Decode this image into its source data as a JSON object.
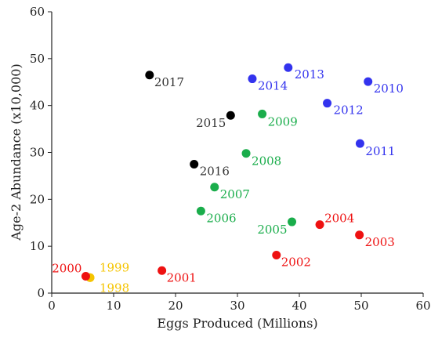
{
  "chart_data": {
    "type": "scatter",
    "xlabel": "Eggs Produced (Millions)",
    "ylabel": "Age-2 Abundance (x10,000)",
    "xlim": [
      0,
      60
    ],
    "ylim": [
      0,
      60
    ],
    "x_ticks": [
      "0",
      "10",
      "20",
      "30",
      "40",
      "50",
      "60"
    ],
    "y_ticks": [
      "0",
      "10",
      "20",
      "30",
      "40",
      "50",
      "60"
    ],
    "grid": false,
    "points": [
      {
        "label": "1998",
        "x": 6.2,
        "y": 3.3,
        "color": "#f5c400"
      },
      {
        "label": "1999",
        "x": 6.2,
        "y": 3.3,
        "color": "#f5c400"
      },
      {
        "label": "2000",
        "x": 5.5,
        "y": 3.6,
        "color": "#ee1111"
      },
      {
        "label": "2001",
        "x": 17.8,
        "y": 4.8,
        "color": "#ee1111"
      },
      {
        "label": "2002",
        "x": 36.3,
        "y": 8.1,
        "color": "#ee1111"
      },
      {
        "label": "2003",
        "x": 49.7,
        "y": 12.4,
        "color": "#ee1111"
      },
      {
        "label": "2004",
        "x": 43.3,
        "y": 14.6,
        "color": "#ee1111"
      },
      {
        "label": "2005",
        "x": 38.8,
        "y": 15.2,
        "color": "#1aad4b"
      },
      {
        "label": "2006",
        "x": 24.1,
        "y": 17.5,
        "color": "#1aad4b"
      },
      {
        "label": "2007",
        "x": 26.3,
        "y": 22.6,
        "color": "#1aad4b"
      },
      {
        "label": "2008",
        "x": 31.4,
        "y": 29.8,
        "color": "#1aad4b"
      },
      {
        "label": "2009",
        "x": 34.0,
        "y": 38.2,
        "color": "#1aad4b"
      },
      {
        "label": "2010",
        "x": 51.1,
        "y": 45.1,
        "color": "#3333ee"
      },
      {
        "label": "2011",
        "x": 49.8,
        "y": 31.9,
        "color": "#3333ee"
      },
      {
        "label": "2012",
        "x": 44.5,
        "y": 40.5,
        "color": "#3333ee"
      },
      {
        "label": "2013",
        "x": 38.2,
        "y": 48.1,
        "color": "#3333ee"
      },
      {
        "label": "2014",
        "x": 32.4,
        "y": 45.7,
        "color": "#3333ee"
      },
      {
        "label": "2015",
        "x": 28.9,
        "y": 37.9,
        "color": "#000000"
      },
      {
        "label": "2016",
        "x": 23.0,
        "y": 27.5,
        "color": "#000000"
      },
      {
        "label": "2017",
        "x": 15.8,
        "y": 46.5,
        "color": "#000000"
      }
    ]
  }
}
